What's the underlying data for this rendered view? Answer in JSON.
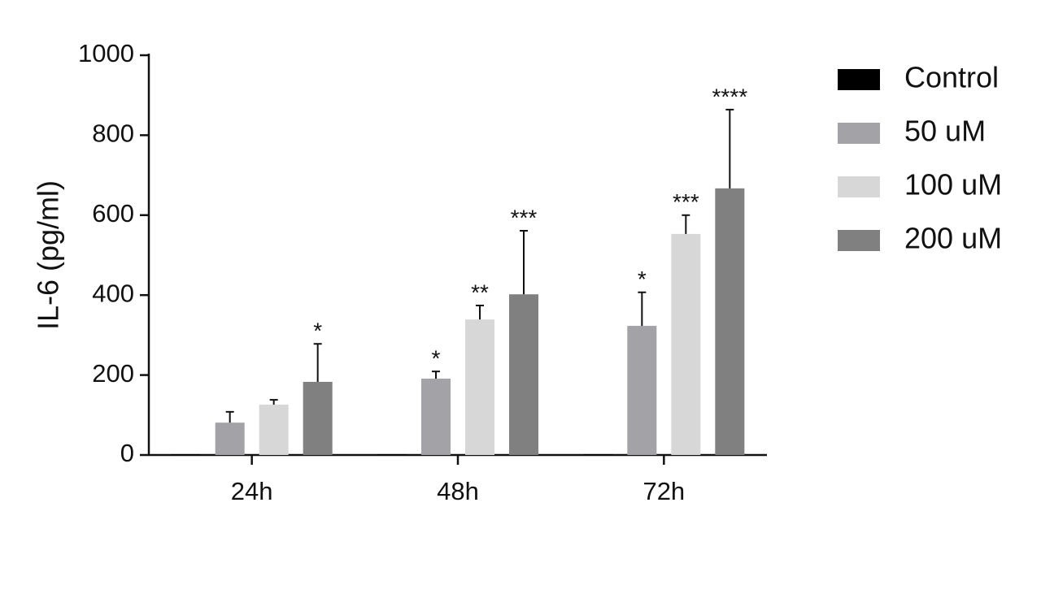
{
  "chart_data": {
    "type": "bar",
    "y_label": "IL-6 (pg/ml)",
    "categories": [
      "24h",
      "48h",
      "72h"
    ],
    "ylim": [
      0,
      1000
    ],
    "yticks": [
      0,
      200,
      400,
      600,
      800,
      1000
    ],
    "series": [
      {
        "name": "Control",
        "color": "#000000",
        "values": [
          2,
          2,
          2
        ],
        "errors": [
          0,
          0,
          0
        ],
        "annotations": [
          null,
          null,
          null
        ]
      },
      {
        "name": "50 uM",
        "color": "#a2a2a7",
        "values": [
          81,
          191,
          323
        ],
        "errors": [
          27,
          18,
          84
        ],
        "annotations": [
          null,
          "*",
          "*"
        ]
      },
      {
        "name": "100 uM",
        "color": "#d7d7d7",
        "values": [
          126,
          339,
          553
        ],
        "errors": [
          12,
          35,
          47
        ],
        "annotations": [
          null,
          "**",
          "***"
        ]
      },
      {
        "name": "200 uM",
        "color": "#808080",
        "values": [
          183,
          402,
          667
        ],
        "errors": [
          95,
          159,
          197
        ],
        "annotations": [
          "*",
          "***",
          "****"
        ]
      }
    ]
  }
}
